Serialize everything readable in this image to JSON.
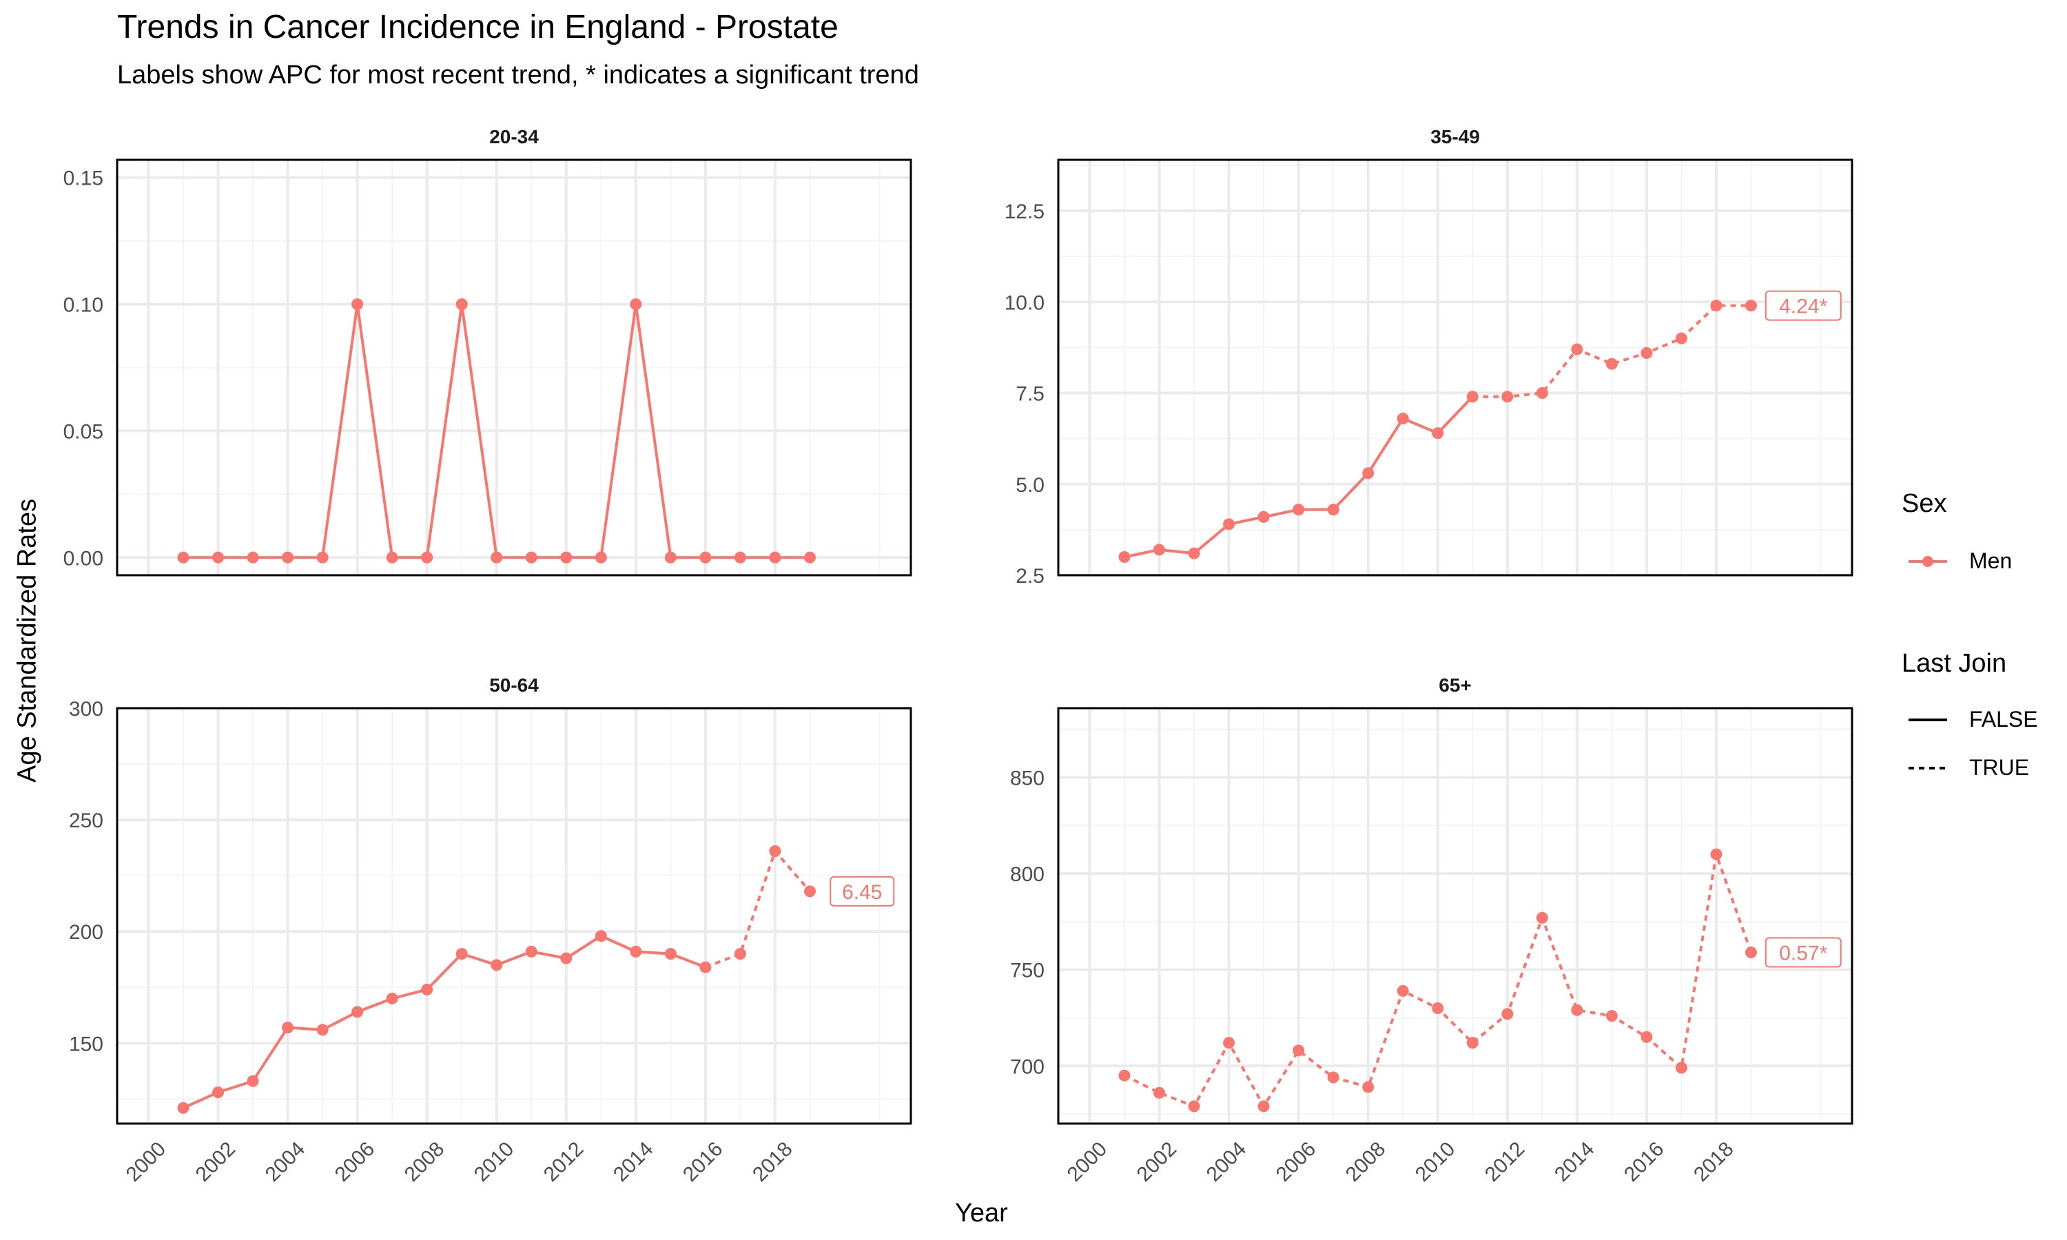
{
  "title": "Trends in Cancer Incidence in England - Prostate",
  "subtitle": "Labels show APC for most recent trend, * indicates a significant trend",
  "xlabel": "Year",
  "ylabel": "Age Standardized Rates",
  "colors": {
    "series": "#F8766D",
    "grid_major": "#EBEBEB",
    "grid_minor": "#F4F4F4",
    "border": "#000000"
  },
  "legend": {
    "sex_title": "Sex",
    "sex_items": [
      {
        "label": "Men",
        "color": "#F8766D"
      }
    ],
    "join_title": "Last Join",
    "join_items": [
      {
        "label": "FALSE",
        "linetype": "solid"
      },
      {
        "label": "TRUE",
        "linetype": "dashed"
      }
    ]
  },
  "chart_data": [
    {
      "type": "line",
      "panel": "20-34",
      "x": [
        2001,
        2002,
        2003,
        2004,
        2005,
        2006,
        2007,
        2008,
        2009,
        2010,
        2011,
        2012,
        2013,
        2014,
        2015,
        2016,
        2017,
        2018,
        2019
      ],
      "series": [
        {
          "name": "Men",
          "values": [
            0,
            0,
            0,
            0,
            0,
            0.1,
            0,
            0,
            0.1,
            0,
            0,
            0,
            0,
            0.1,
            0,
            0,
            0,
            0,
            0
          ]
        }
      ],
      "last_join_from_index": null,
      "apc_label": "",
      "xlim": [
        1999.1,
        2021.9
      ],
      "ylim": [
        -0.007,
        0.157
      ],
      "y_ticks": [
        0,
        0.05,
        0.1,
        0.15
      ],
      "y_tick_labels": [
        "0.00",
        "0.05",
        "0.10",
        "0.15"
      ]
    },
    {
      "type": "line",
      "panel": "35-49",
      "x": [
        2001,
        2002,
        2003,
        2004,
        2005,
        2006,
        2007,
        2008,
        2009,
        2010,
        2011,
        2012,
        2013,
        2014,
        2015,
        2016,
        2017,
        2018,
        2019
      ],
      "series": [
        {
          "name": "Men",
          "values": [
            3.0,
            3.2,
            3.1,
            3.9,
            4.1,
            4.3,
            4.3,
            5.3,
            6.8,
            6.4,
            7.4,
            7.4,
            7.5,
            8.7,
            8.3,
            8.6,
            9.0,
            9.9,
            9.9
          ]
        }
      ],
      "last_join_from_index": 10,
      "apc_label": "4.24*",
      "xlim": [
        1999.1,
        2021.9
      ],
      "ylim": [
        2.5,
        13.9
      ],
      "y_ticks": [
        2.5,
        5,
        7.5,
        10,
        12.5
      ],
      "y_tick_labels": [
        "2.5",
        "5.0",
        "7.5",
        "10.0",
        "12.5"
      ]
    },
    {
      "type": "line",
      "panel": "50-64",
      "x": [
        2001,
        2002,
        2003,
        2004,
        2005,
        2006,
        2007,
        2008,
        2009,
        2010,
        2011,
        2012,
        2013,
        2014,
        2015,
        2016,
        2017,
        2018,
        2019
      ],
      "series": [
        {
          "name": "Men",
          "values": [
            121,
            128,
            133,
            157,
            156,
            164,
            170,
            174,
            190,
            185,
            191,
            188,
            198,
            191,
            190,
            184,
            190,
            236,
            218
          ]
        }
      ],
      "last_join_from_index": 15,
      "apc_label": "6.45",
      "xlim": [
        1999.1,
        2021.9
      ],
      "ylim": [
        114,
        300
      ],
      "y_ticks": [
        150,
        200,
        250,
        300
      ],
      "y_tick_labels": [
        "150",
        "200",
        "250",
        "300"
      ]
    },
    {
      "type": "line",
      "panel": "65+",
      "x": [
        2001,
        2002,
        2003,
        2004,
        2005,
        2006,
        2007,
        2008,
        2009,
        2010,
        2011,
        2012,
        2013,
        2014,
        2015,
        2016,
        2017,
        2018,
        2019
      ],
      "series": [
        {
          "name": "Men",
          "values": [
            695,
            686,
            679,
            712,
            679,
            708,
            694,
            689,
            739,
            730,
            712,
            727,
            777,
            729,
            726,
            715,
            699,
            810,
            759
          ]
        }
      ],
      "last_join_from_index": 0,
      "apc_label": "0.57*",
      "xlim": [
        1999.1,
        2021.9
      ],
      "ylim": [
        670,
        886
      ],
      "y_ticks": [
        700,
        750,
        800,
        850
      ],
      "y_tick_labels": [
        "700",
        "750",
        "800",
        "850"
      ]
    }
  ],
  "x_ticks": [
    2000,
    2002,
    2004,
    2006,
    2008,
    2010,
    2012,
    2014,
    2016,
    2018
  ],
  "x_tick_labels": [
    "2000",
    "2002",
    "2004",
    "2006",
    "2008",
    "2010",
    "2012",
    "2014",
    "2016",
    "2018"
  ]
}
